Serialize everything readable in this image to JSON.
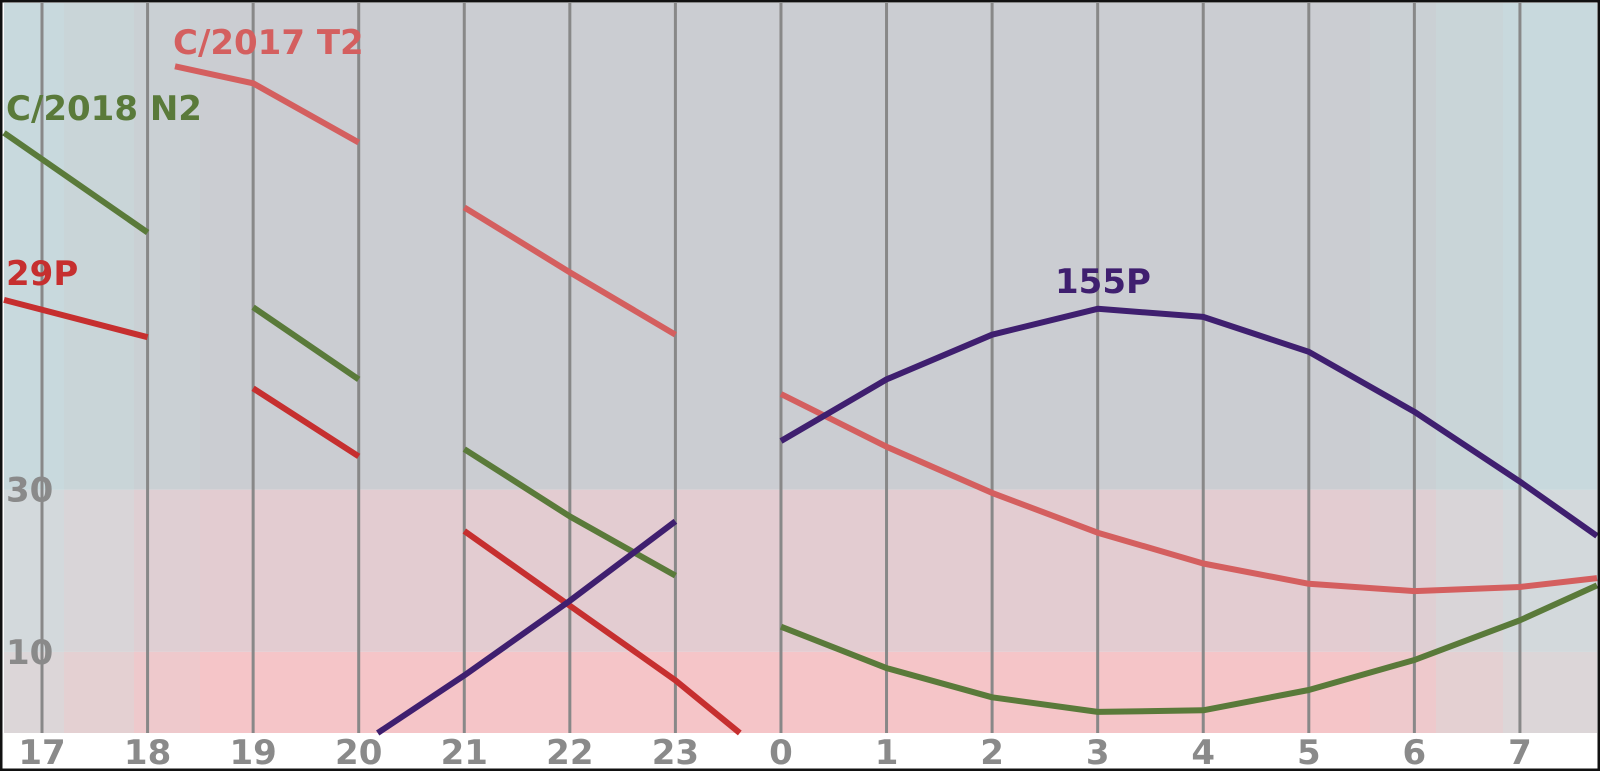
{
  "chart_data": {
    "type": "line",
    "x": [
      16.64,
      18,
      18.26,
      19,
      20,
      20.18,
      21,
      22,
      23,
      23.61,
      24,
      25,
      26,
      27,
      28,
      29,
      30,
      31,
      31.73
    ],
    "series": [
      {
        "name": "C/2017 T2",
        "color": "#d45f5f",
        "values": [
          74,
          null,
          82.2,
          80.1,
          72.8,
          null,
          64.8,
          56.8,
          49.1,
          null,
          41.8,
          35.3,
          29.6,
          24.7,
          20.9,
          18.4,
          17.5,
          18,
          19.1
        ]
      },
      {
        "name": "C/2018 N2",
        "color": "#5a7a3a",
        "values": [
          74,
          61.7,
          null,
          52.5,
          43.6,
          null,
          35,
          26.7,
          19.4,
          null,
          13.1,
          8,
          4.4,
          2.6,
          2.8,
          5.3,
          9,
          13.9,
          18.2
        ]
      },
      {
        "name": "29P",
        "color": "#c62f2f",
        "values": [
          53.4,
          48.8,
          null,
          42.5,
          34.1,
          null,
          24.9,
          15.7,
          6.5,
          0,
          null,
          null,
          null,
          null,
          null,
          null,
          null,
          null,
          null
        ]
      },
      {
        "name": "155P",
        "color": "#3f1f6f",
        "values": [
          null,
          null,
          null,
          null,
          null,
          0,
          7.1,
          16.3,
          26.1,
          null,
          36,
          43.6,
          49.1,
          52.3,
          51.3,
          47,
          39.6,
          31,
          24.3
        ]
      }
    ],
    "xlim": [
      16.64,
      31.73
    ],
    "xticks": [
      17,
      18,
      19,
      20,
      21,
      22,
      23,
      {
        "value": 24,
        "label": "0"
      },
      {
        "value": 25,
        "label": "1"
      },
      {
        "value": 26,
        "label": "2"
      },
      {
        "value": 27,
        "label": "3"
      },
      {
        "value": 28,
        "label": "4"
      },
      {
        "value": 29,
        "label": "5"
      },
      {
        "value": 30,
        "label": "6"
      },
      {
        "value": 31,
        "label": "7"
      }
    ],
    "ylim": [
      0,
      90
    ],
    "yticks": [
      10,
      30
    ]
  }
}
